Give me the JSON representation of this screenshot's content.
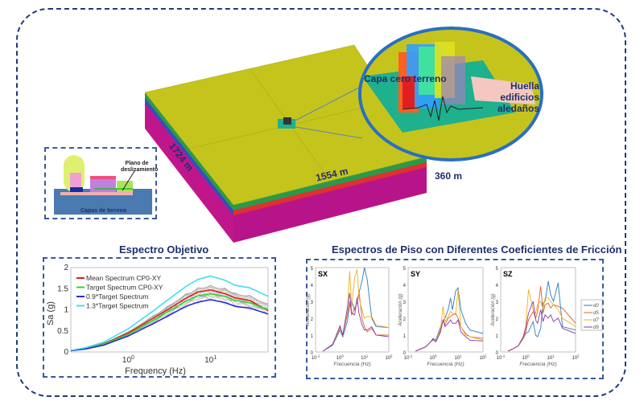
{
  "model": {
    "dim_length": "1724 m",
    "dim_width": "1554 m",
    "dim_depth": "360 m",
    "zoom_label_layer": "Capa cero terreno",
    "zoom_label_footprint": "Huella edificios aledaños",
    "colors": {
      "top": "#c5c41d",
      "side": "#c0168c",
      "circle_border": "#2a6fc0",
      "layer0": "#1fb08e",
      "footprint": "#f4c8c0"
    }
  },
  "inset": {
    "label_plane": "Plano de deslizamiento",
    "label_layers": "Capas de terreno"
  },
  "chart_data": [
    {
      "type": "line",
      "title": "Espectro Objetivo",
      "xlabel": "Frequency (Hz)",
      "ylabel": "Sa (g)",
      "xscale": "log",
      "xlim": [
        0.2,
        50
      ],
      "ylim": [
        0,
        2
      ],
      "yticks": [
        "0",
        "0.5",
        "1",
        "1.5",
        "2"
      ],
      "xticks": [
        "10^0",
        "10^1"
      ],
      "legend": "top-left",
      "grid": false,
      "x": [
        0.2,
        0.3,
        0.5,
        1,
        2,
        3,
        5,
        7,
        10,
        15,
        20,
        30,
        50
      ],
      "series": [
        {
          "name": "Mean Spectrum CP0-XY",
          "color": "#e81c1c",
          "values": [
            0.03,
            0.08,
            0.19,
            0.45,
            0.8,
            1.0,
            1.27,
            1.42,
            1.47,
            1.38,
            1.28,
            1.22,
            0.98
          ]
        },
        {
          "name": "Target Spectrum CP0-XY",
          "color": "#2ed82e",
          "values": [
            0.03,
            0.08,
            0.18,
            0.42,
            0.75,
            0.95,
            1.2,
            1.33,
            1.38,
            1.32,
            1.22,
            1.17,
            1.0
          ]
        },
        {
          "name": "0.9*Target Spectrum",
          "color": "#2a2ad8",
          "values": [
            0.03,
            0.07,
            0.16,
            0.38,
            0.67,
            0.85,
            1.08,
            1.18,
            1.24,
            1.17,
            1.08,
            1.04,
            0.9
          ]
        },
        {
          "name": "1.3*Target Spectrum",
          "color": "#3ee0ee",
          "values": [
            0.04,
            0.1,
            0.23,
            0.55,
            0.97,
            1.23,
            1.55,
            1.72,
            1.8,
            1.7,
            1.58,
            1.52,
            1.32
          ]
        }
      ]
    },
    {
      "type": "line",
      "title": "Espectros de Piso con Diferentes Coeficientes de Fricción",
      "xlabel": "Frecuencia (Hz)",
      "ylabel": "Aceleración (g)",
      "xscale": "log",
      "xlim": [
        0.1,
        100
      ],
      "ylim": [
        0,
        5
      ],
      "yticks": [
        "0",
        "1",
        "2",
        "3",
        "4",
        "5"
      ],
      "xticks": [
        "10^-1",
        "10^0",
        "10^1",
        "10^2"
      ],
      "legend": "right",
      "legend_entries": [
        "d0",
        "d5",
        "d7",
        "d9"
      ],
      "colors": [
        "#2a7ac0",
        "#e0602a",
        "#f0b020",
        "#8a3aa8"
      ],
      "x": [
        0.2,
        0.5,
        0.8,
        1,
        1.3,
        2,
        2.5,
        3,
        4,
        5,
        6,
        8,
        10,
        13,
        20,
        30,
        100
      ],
      "panels": [
        {
          "label": "SX",
          "series": [
            {
              "name": "d0",
              "values": [
                0.05,
                0.4,
                1.0,
                1.3,
                0.9,
                1.8,
                2.8,
                3.0,
                2.5,
                3.0,
                3.5,
                4.2,
                5.0,
                4.3,
                2.0,
                1.5,
                1.45
              ]
            },
            {
              "name": "d5",
              "values": [
                0.05,
                0.45,
                1.1,
                1.5,
                1.0,
                2.2,
                3.0,
                2.2,
                2.6,
                2.9,
                3.6,
                2.0,
                1.5,
                1.2,
                1.4,
                1.0,
                1.0
              ]
            },
            {
              "name": "d7",
              "values": [
                0.05,
                0.45,
                1.1,
                1.4,
                1.0,
                2.5,
                4.8,
                2.7,
                4.4,
                4.9,
                3.2,
                2.5,
                2.0,
                2.1,
                2.1,
                1.6,
                1.45
              ]
            },
            {
              "name": "d9",
              "values": [
                0.05,
                0.45,
                1.2,
                1.55,
                1.0,
                2.6,
                3.5,
                2.3,
                2.2,
                3.2,
                2.3,
                1.6,
                1.3,
                1.3,
                1.5,
                1.0,
                0.9
              ]
            }
          ]
        },
        {
          "label": "SY",
          "series": [
            {
              "name": "d0",
              "values": [
                0.05,
                0.3,
                0.6,
                0.8,
                0.7,
                1.5,
                1.8,
                2.0,
                2.5,
                3.2,
                2.5,
                3.6,
                3.8,
                2.5,
                1.7,
                1.3,
                1.1
              ]
            },
            {
              "name": "d5",
              "values": [
                0.05,
                0.3,
                0.6,
                0.7,
                0.6,
                1.3,
                1.9,
                1.6,
                2.0,
                2.1,
                2.2,
                2.3,
                2.0,
                1.5,
                1.1,
                0.9,
                0.8
              ]
            },
            {
              "name": "d7",
              "values": [
                0.05,
                0.3,
                0.6,
                0.7,
                0.6,
                1.4,
                2.7,
                1.8,
                2.1,
                2.4,
                2.3,
                2.2,
                3.7,
                1.5,
                1.0,
                0.9,
                0.7
              ]
            },
            {
              "name": "d9",
              "values": [
                0.05,
                0.3,
                0.6,
                0.75,
                0.6,
                1.2,
                1.9,
                1.5,
                1.7,
                1.9,
                1.7,
                1.7,
                1.9,
                1.2,
                0.9,
                0.7,
                0.65
              ]
            }
          ]
        },
        {
          "label": "SZ",
          "series": [
            {
              "name": "d0",
              "values": [
                0.05,
                0.35,
                0.8,
                1.1,
                1.2,
                1.8,
                1.0,
                0.9,
                1.4,
                2.9,
                3.0,
                4.2,
                3.4,
                3.0,
                4.1,
                1.5,
                1.3
              ]
            },
            {
              "name": "d5",
              "values": [
                0.05,
                0.35,
                0.8,
                1.2,
                1.9,
                2.4,
                2.0,
                2.4,
                3.9,
                2.3,
                2.8,
                2.9,
                2.6,
                2.8,
                2.7,
                2.6,
                1.7
              ]
            },
            {
              "name": "d7",
              "values": [
                0.05,
                0.35,
                0.9,
                1.5,
                3.7,
                2.5,
                2.3,
                2.8,
                3.0,
                2.5,
                3.2,
                3.2,
                3.0,
                2.8,
                2.5,
                2.0,
                1.5
              ]
            },
            {
              "name": "d9",
              "values": [
                0.05,
                0.35,
                0.9,
                1.4,
                2.3,
                3.0,
                1.9,
                1.7,
                2.5,
                1.8,
                2.2,
                2.0,
                2.2,
                1.8,
                2.0,
                1.4,
                1.1
              ]
            }
          ]
        }
      ]
    }
  ]
}
